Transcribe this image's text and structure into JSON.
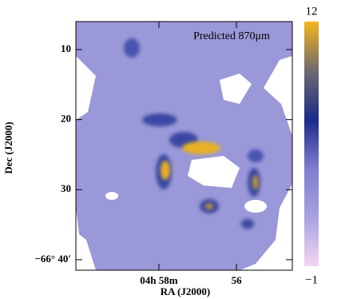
{
  "chart_data": {
    "type": "image",
    "annotation": "Predicted 870μm",
    "x_label": "RA (J2000)",
    "y_label": "Dec (J2000)",
    "xlim": [
      60.14,
      54.56
    ],
    "xticks": [
      {
        "value": 58,
        "label": "04h 58m"
      },
      56
    ],
    "ylim": [
      41.5,
      6
    ],
    "yticks": [
      10,
      20,
      30,
      {
        "value": 40,
        "label": "−66° 40′"
      }
    ],
    "colorbar_lim": [
      -1,
      12
    ],
    "colorbar_ticks": [
      {
        "value": -1,
        "label": "−1"
      },
      12
    ],
    "colormap": [
      "#f3d6f3",
      "#a8a2e0",
      "#7e7ed0",
      "#1c2a88",
      "#706a70",
      "#f4b41a"
    ]
  }
}
